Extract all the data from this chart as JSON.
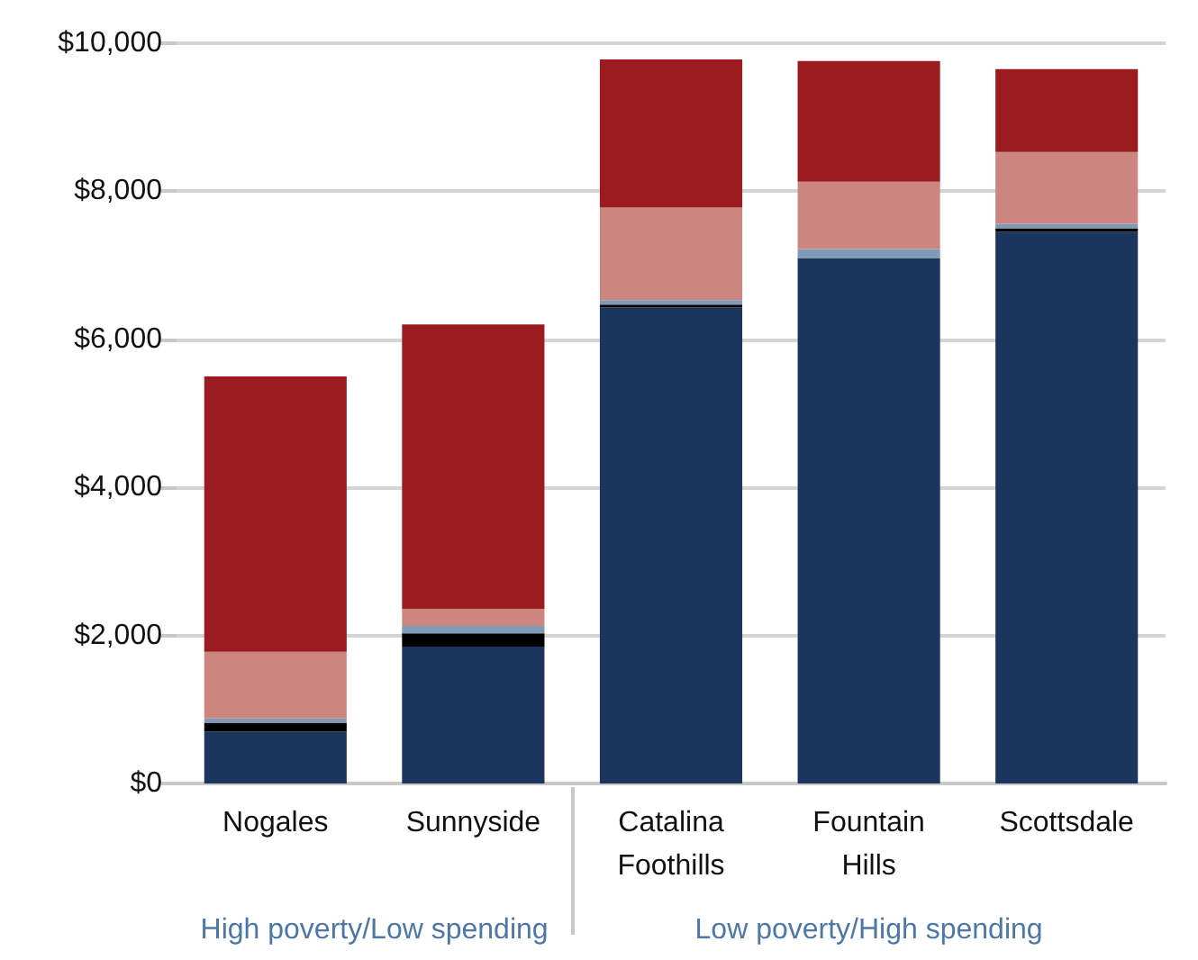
{
  "chart_data": {
    "type": "bar",
    "stacked": true,
    "categories": [
      "Nogales",
      "Sunnyside",
      "Catalina\nFoothills",
      "Fountain\nHills",
      "Scottsdale"
    ],
    "series": [
      {
        "color": "#1c355e",
        "values": [
          700,
          1850,
          6430,
          7100,
          7450
        ]
      },
      {
        "color": "#000000",
        "values": [
          120,
          180,
          40,
          0,
          50
        ]
      },
      {
        "color": "#7f9bb8",
        "values": [
          60,
          100,
          60,
          120,
          60
        ]
      },
      {
        "color": "#cc857f",
        "values": [
          900,
          230,
          1250,
          910,
          970
        ]
      },
      {
        "color": "#9b1b1f",
        "values": [
          3720,
          3840,
          2000,
          1630,
          1120
        ]
      }
    ],
    "ylim": [
      0,
      10000
    ],
    "yticks": [
      {
        "value": 0,
        "label": "$0"
      },
      {
        "value": 2000,
        "label": "$2,000"
      },
      {
        "value": 4000,
        "label": "$4,000"
      },
      {
        "value": 6000,
        "label": "$6,000"
      },
      {
        "value": 8000,
        "label": "$8,000"
      },
      {
        "value": 10000,
        "label": "$10,000"
      }
    ],
    "grid": "y",
    "annotations": [
      "High poverty/Low spending",
      "Low poverty/High spending"
    ]
  }
}
